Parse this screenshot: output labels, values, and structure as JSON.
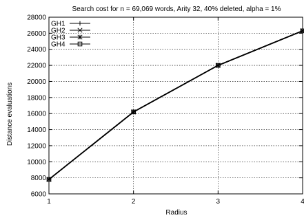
{
  "chart_data": {
    "type": "line",
    "title": "Search cost for n = 69,069 words, Arity 32, 40% deleted, alpha = 1%",
    "xlabel": "Radius",
    "ylabel": "Distance evaluations",
    "xlim": [
      1,
      4
    ],
    "ylim": [
      6000,
      28000
    ],
    "xticks": [
      1,
      2,
      3,
      4
    ],
    "yticks": [
      6000,
      8000,
      10000,
      12000,
      14000,
      16000,
      18000,
      20000,
      22000,
      24000,
      26000,
      28000
    ],
    "grid": true,
    "legend_position": "top-left",
    "line_color": "#000000",
    "series": [
      {
        "name": "GH1",
        "marker": "plus",
        "x": [
          1,
          2,
          3,
          4
        ],
        "y": [
          7800,
          16200,
          22000,
          26300
        ]
      },
      {
        "name": "GH2",
        "marker": "cross",
        "x": [
          1,
          2,
          3,
          4
        ],
        "y": [
          7800,
          16200,
          22000,
          26300
        ]
      },
      {
        "name": "GH3",
        "marker": "asterisk",
        "x": [
          1,
          2,
          3,
          4
        ],
        "y": [
          7800,
          16200,
          22000,
          26300
        ]
      },
      {
        "name": "GH4",
        "marker": "square",
        "x": [
          1,
          2,
          3,
          4
        ],
        "y": [
          7800,
          16200,
          22000,
          26300
        ]
      }
    ]
  }
}
